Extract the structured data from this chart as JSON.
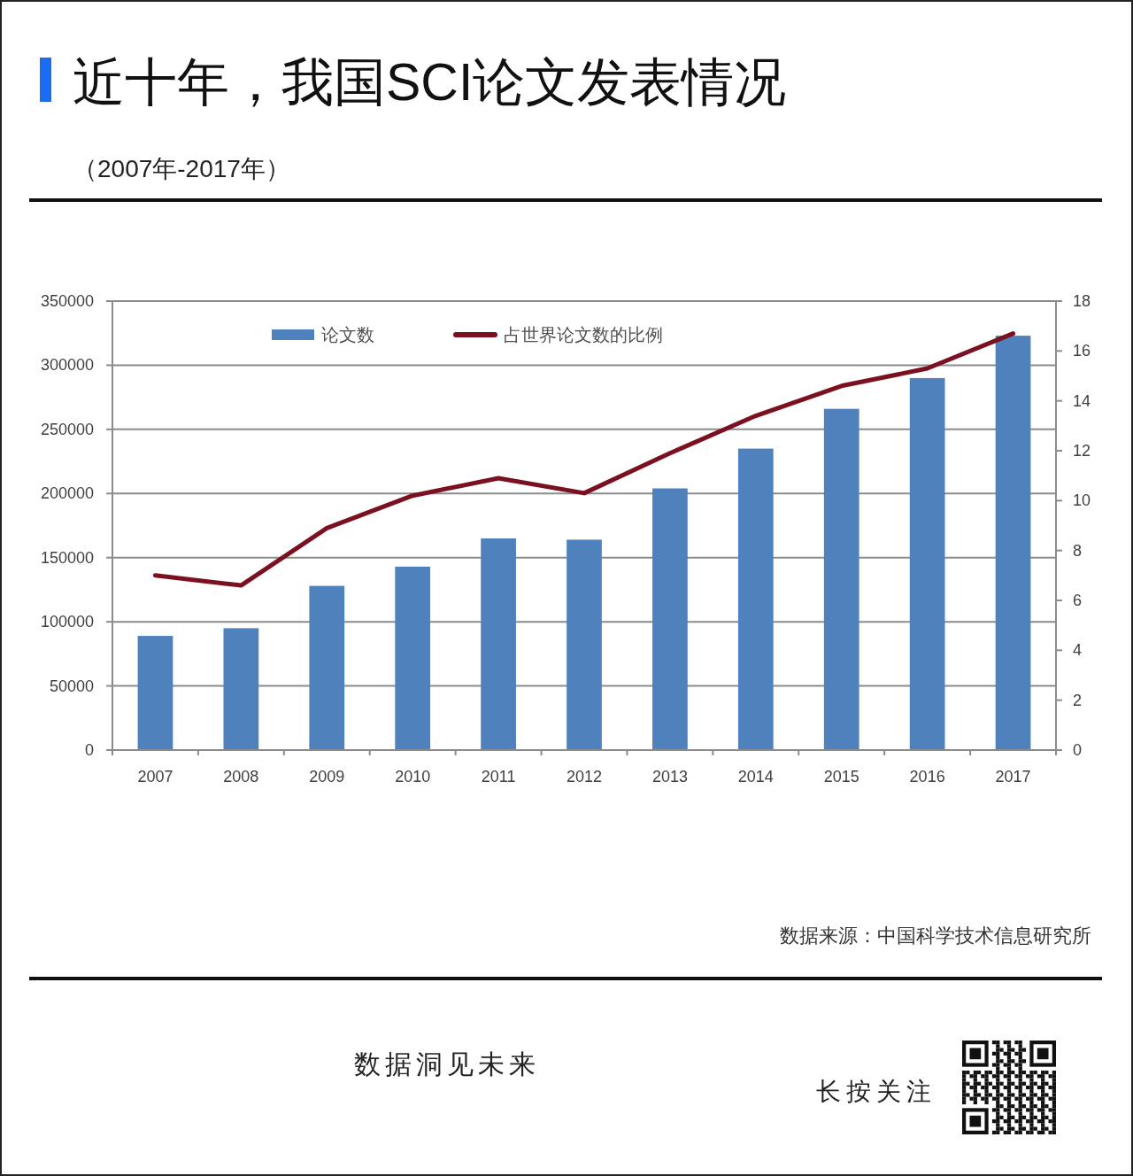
{
  "chart_data": {
    "type": "bar",
    "title": "近十年，我国SCI论文发表情况",
    "subtitle": "（2007年-2017年）",
    "categories": [
      "2007",
      "2008",
      "2009",
      "2010",
      "2011",
      "2012",
      "2013",
      "2014",
      "2015",
      "2016",
      "2017"
    ],
    "series": [
      {
        "name": "论文数",
        "color": "#4f81bd",
        "values": [
          89000,
          95000,
          128000,
          143000,
          165000,
          164000,
          204000,
          235000,
          266000,
          290000,
          323000
        ]
      },
      {
        "name": "占世界论文数的比例",
        "type": "line",
        "axis": "y2",
        "color": "#7b1020",
        "values": [
          7.0,
          6.6,
          8.9,
          10.2,
          10.9,
          10.3,
          11.9,
          13.4,
          14.6,
          15.3,
          16.7
        ]
      }
    ],
    "ylim": [
      0,
      350000
    ],
    "yticks": [
      0,
      50000,
      100000,
      150000,
      200000,
      250000,
      300000,
      350000
    ],
    "y2lim": [
      0,
      18
    ],
    "y2ticks": [
      0,
      2,
      4,
      6,
      8,
      10,
      12,
      14,
      16,
      18
    ],
    "grid": "y",
    "legend": "top",
    "annotations": [
      "数据来源：中国科学技术信息研究所",
      "数据洞见未来",
      "长按关注"
    ]
  }
}
